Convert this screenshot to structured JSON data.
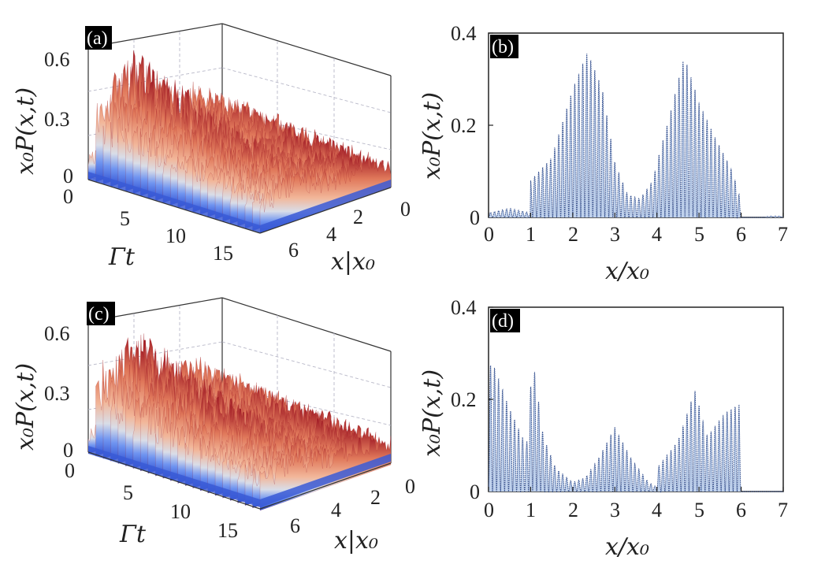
{
  "figure": {
    "background": "#ffffff",
    "colors": {
      "surface_high": "#a01c24",
      "surface_mid": "#ec9b7a",
      "surface_low": "#3a5ad6",
      "line2d": "#2e4a8a",
      "fill2d": "#bfd1ec"
    }
  },
  "chart_data": [
    {
      "id": "a",
      "type": "surface3d",
      "panel_label": "(a)",
      "zlabel": "x₀P(x,t)",
      "xlabel": "x|x₀",
      "ylabel": "Γt",
      "z_ticks": [
        "0",
        "0.3",
        "0.6"
      ],
      "t_ticks": [
        "0",
        "5",
        "10",
        "15"
      ],
      "x_ticks": [
        "6",
        "4",
        "2",
        "0"
      ],
      "zlim": [
        0,
        0.8
      ],
      "seed": 7
    },
    {
      "id": "b",
      "type": "line",
      "panel_label": "(b)",
      "ylabel": "x₀P(x,t)",
      "xlabel": "x/x₀",
      "x_ticks": [
        "0",
        "1",
        "2",
        "3",
        "4",
        "5",
        "6",
        "7"
      ],
      "y_ticks": [
        "0",
        "0.2",
        "0.4"
      ],
      "xlim": [
        0,
        7
      ],
      "ylim": [
        0,
        0.4
      ],
      "envelope_x": [
        0,
        0.5,
        0.99,
        1.0,
        1.5,
        2.0,
        2.35,
        2.7,
        3.0,
        3.3,
        3.6,
        3.9,
        4.0,
        4.3,
        4.65,
        5.0,
        5.4,
        5.8,
        5.95,
        6.0,
        6.5,
        6.7,
        7.0
      ],
      "envelope_y": [
        0.01,
        0.02,
        0.01,
        0.08,
        0.13,
        0.28,
        0.36,
        0.28,
        0.12,
        0.05,
        0.04,
        0.08,
        0.12,
        0.22,
        0.35,
        0.25,
        0.17,
        0.1,
        0.05,
        0.0,
        0.0,
        0.003,
        0.003
      ]
    },
    {
      "id": "c",
      "type": "surface3d",
      "panel_label": "(c)",
      "zlabel": "x₀P(x,t)",
      "xlabel": "x|x₀",
      "ylabel": "Γt",
      "z_ticks": [
        "0",
        "0.3",
        "0.6"
      ],
      "t_ticks": [
        "0",
        "5",
        "10",
        "15"
      ],
      "x_ticks": [
        "6",
        "4",
        "2",
        "0"
      ],
      "zlim": [
        0,
        0.8
      ],
      "seed": 19
    },
    {
      "id": "d",
      "type": "line",
      "panel_label": "(d)",
      "ylabel": "x₀P(x,t)",
      "xlabel": "x/x₀",
      "x_ticks": [
        "0",
        "1",
        "2",
        "3",
        "4",
        "5",
        "6",
        "7"
      ],
      "y_ticks": [
        "0",
        "0.2",
        "0.4"
      ],
      "xlim": [
        0,
        7
      ],
      "ylim": [
        0,
        0.4
      ],
      "envelope_x": [
        0,
        0.1,
        0.5,
        0.9,
        1.05,
        1.3,
        1.6,
        2.0,
        2.3,
        2.6,
        3.0,
        3.4,
        3.8,
        3.99,
        4.0,
        4.5,
        4.9,
        5.2,
        5.6,
        5.95,
        6.0,
        7.0
      ],
      "envelope_y": [
        0.27,
        0.28,
        0.18,
        0.1,
        0.29,
        0.12,
        0.05,
        0.02,
        0.03,
        0.07,
        0.14,
        0.07,
        0.02,
        0.01,
        0.05,
        0.11,
        0.22,
        0.12,
        0.17,
        0.19,
        0.0,
        0.0
      ]
    }
  ]
}
